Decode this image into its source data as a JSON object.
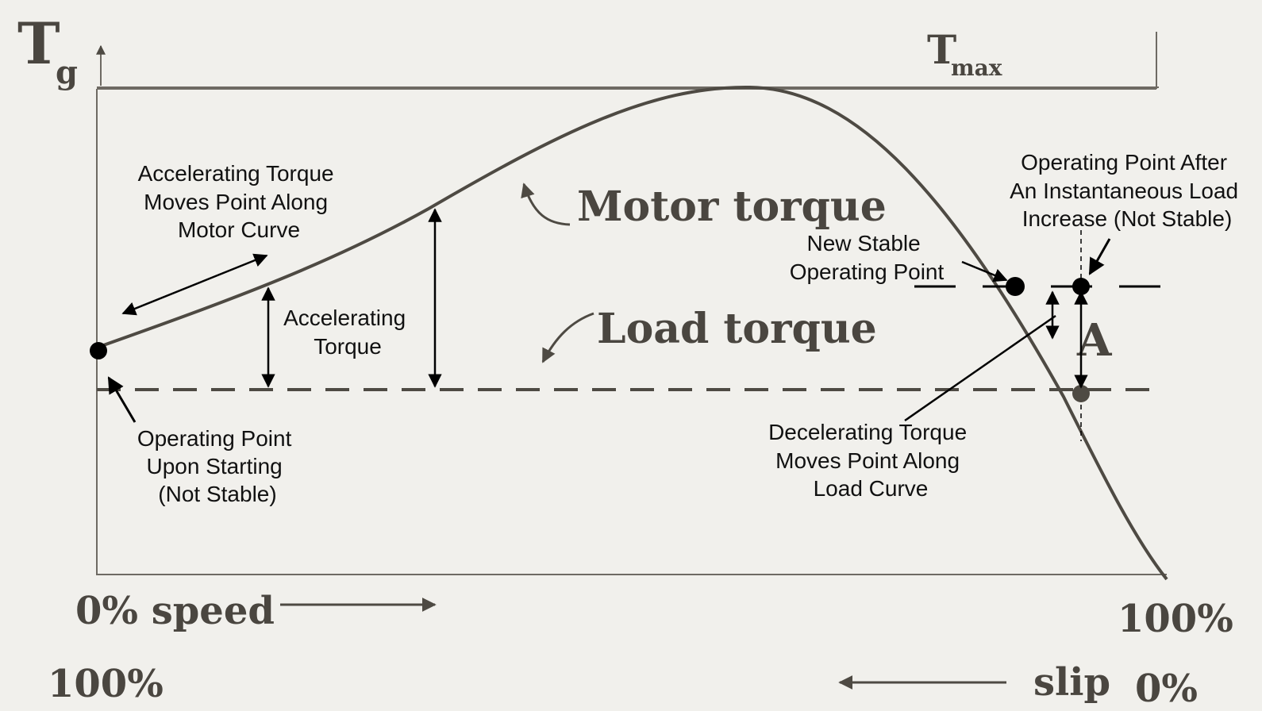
{
  "diagram": {
    "axis": {
      "y_main": "T",
      "y_sub": "g",
      "tmax_main": "T",
      "tmax_sub": "max"
    },
    "labels": {
      "motor_torque": "Motor torque",
      "load_torque": "Load torque",
      "region_a": "A",
      "speed_start": "0% speed",
      "speed_end": "100%",
      "slip_start": "100%",
      "slip_word": "slip",
      "slip_end": "0%"
    },
    "annotations": {
      "accel_moves": [
        "Accelerating Torque",
        "Moves Point Along",
        "Motor Curve"
      ],
      "accel_torque": [
        "Accelerating",
        "Torque"
      ],
      "start_point": [
        "Operating Point",
        "Upon Starting",
        "(Not Stable)"
      ],
      "new_stable": [
        "New Stable",
        "Operating Point"
      ],
      "after_increase": [
        "Operating Point After",
        "An Instantaneous Load",
        "Increase (Not Stable)"
      ],
      "decel_moves": [
        "Decelerating Torque",
        "Moves Point Along",
        "Load Curve"
      ]
    }
  }
}
